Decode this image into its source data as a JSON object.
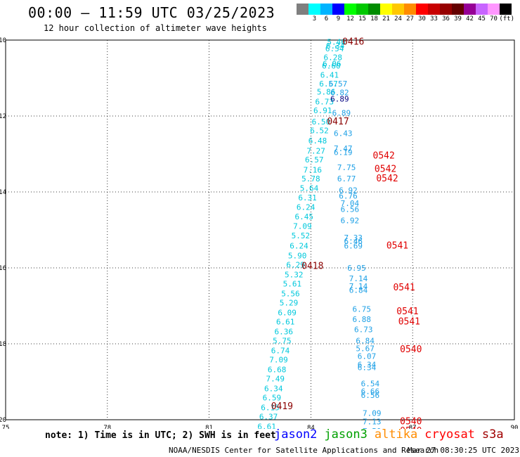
{
  "header": {
    "title": "00:00 — 11:59 UTC 03/25/2023",
    "subtitle": "12 hour collection of altimeter wave heights"
  },
  "colorbar": {
    "unit": "(ft)",
    "colors": [
      "#7f7f7f",
      "#00ffff",
      "#00b4ff",
      "#0000ff",
      "#00ff00",
      "#00c800",
      "#008c00",
      "#ffff00",
      "#ffc800",
      "#ff8c00",
      "#ff0000",
      "#c80000",
      "#960000",
      "#640000",
      "#960096",
      "#c864ff",
      "#ff96ff",
      "#000000"
    ],
    "labels": [
      "3",
      "6",
      "9",
      "12",
      "15",
      "18",
      "21",
      "24",
      "27",
      "30",
      "33",
      "36",
      "39",
      "42",
      "45",
      "70"
    ]
  },
  "footer": {
    "note": "note: 1) Time is in UTC; 2) SWH is in feet",
    "credit": "NOAA/NESDIS Center for Satellite Applications and Research",
    "timestamp": "Mar 27 08:30:25 UTC 2023"
  },
  "satellites": [
    {
      "name": "jason2",
      "color": "#0000ff"
    },
    {
      "name": "jason3",
      "color": "#00a000"
    },
    {
      "name": "altika",
      "color": "#ff8c00"
    },
    {
      "name": "cryosat",
      "color": "#ff0000"
    },
    {
      "name": "s3a",
      "color": "#a00000"
    }
  ],
  "chart_data": {
    "type": "scatter",
    "title": "00:00 — 11:59 UTC 03/25/2023",
    "subtitle": "12 hour collection of altimeter wave heights",
    "xlim": [
      75,
      90
    ],
    "ylim": [
      -20,
      -10
    ],
    "x_ticks": [
      "75",
      "78",
      "81",
      "84",
      "87",
      "90"
    ],
    "y_ticks": [
      "-10",
      "-12",
      "-14",
      "-16",
      "-18",
      "-20"
    ],
    "grid": true,
    "track1": {
      "color": "#00c8dc",
      "points": [
        {
          "lon": 84.75,
          "lat": -10.05,
          "v": "5.46"
        },
        {
          "lon": 84.72,
          "lat": -10.15,
          "v": "6.34"
        },
        {
          "lon": 84.7,
          "lat": -10.22,
          "v": "6.54"
        },
        {
          "lon": 84.65,
          "lat": -10.45,
          "v": "6.28"
        },
        {
          "lon": 84.62,
          "lat": -10.62,
          "v": "6.06"
        },
        {
          "lon": 84.6,
          "lat": -10.68,
          "v": "6.60"
        },
        {
          "lon": 84.55,
          "lat": -10.92,
          "v": "6.41"
        },
        {
          "lon": 84.52,
          "lat": -11.15,
          "v": "6.57"
        },
        {
          "lon": 84.45,
          "lat": -11.36,
          "v": "5.86"
        },
        {
          "lon": 84.4,
          "lat": -11.62,
          "v": "6.73"
        },
        {
          "lon": 84.35,
          "lat": -11.85,
          "v": "6.91"
        },
        {
          "lon": 84.3,
          "lat": -12.15,
          "v": "6.50"
        },
        {
          "lon": 84.25,
          "lat": -12.38,
          "v": "6.52"
        },
        {
          "lon": 84.2,
          "lat": -12.65,
          "v": "6.48"
        },
        {
          "lon": 84.15,
          "lat": -12.92,
          "v": "7.27"
        },
        {
          "lon": 84.1,
          "lat": -13.15,
          "v": "6.57"
        },
        {
          "lon": 84.05,
          "lat": -13.42,
          "v": "7.16"
        },
        {
          "lon": 84.0,
          "lat": -13.65,
          "v": "5.78"
        },
        {
          "lon": 83.95,
          "lat": -13.9,
          "v": "5.64"
        },
        {
          "lon": 83.9,
          "lat": -14.15,
          "v": "6.31"
        },
        {
          "lon": 83.85,
          "lat": -14.4,
          "v": "6.24"
        },
        {
          "lon": 83.8,
          "lat": -14.65,
          "v": "6.45"
        },
        {
          "lon": 83.75,
          "lat": -14.9,
          "v": "7.09"
        },
        {
          "lon": 83.7,
          "lat": -15.15,
          "v": "5.52"
        },
        {
          "lon": 83.65,
          "lat": -15.42,
          "v": "6.24"
        },
        {
          "lon": 83.6,
          "lat": -15.68,
          "v": "5.90"
        },
        {
          "lon": 83.55,
          "lat": -15.92,
          "v": "6.29"
        },
        {
          "lon": 83.5,
          "lat": -16.18,
          "v": "5.32"
        },
        {
          "lon": 83.45,
          "lat": -16.42,
          "v": "5.61"
        },
        {
          "lon": 83.4,
          "lat": -16.68,
          "v": "5.56"
        },
        {
          "lon": 83.35,
          "lat": -16.92,
          "v": "5.29"
        },
        {
          "lon": 83.3,
          "lat": -17.18,
          "v": "6.09"
        },
        {
          "lon": 83.25,
          "lat": -17.42,
          "v": "6.61"
        },
        {
          "lon": 83.2,
          "lat": -17.68,
          "v": "6.36"
        },
        {
          "lon": 83.15,
          "lat": -17.92,
          "v": "5.75"
        },
        {
          "lon": 83.1,
          "lat": -18.18,
          "v": "6.74"
        },
        {
          "lon": 83.05,
          "lat": -18.42,
          "v": "7.09"
        },
        {
          "lon": 83.0,
          "lat": -18.68,
          "v": "6.68"
        },
        {
          "lon": 82.95,
          "lat": -18.92,
          "v": "7.49"
        },
        {
          "lon": 82.9,
          "lat": -19.18,
          "v": "6.34"
        },
        {
          "lon": 82.85,
          "lat": -19.42,
          "v": "6.59"
        },
        {
          "lon": 82.8,
          "lat": -19.68,
          "v": "6.15"
        },
        {
          "lon": 82.75,
          "lat": -19.92,
          "v": "6.37"
        },
        {
          "lon": 82.7,
          "lat": -20.18,
          "v": "6.61"
        },
        {
          "lon": 82.65,
          "lat": -20.42,
          "v": "7.28"
        }
      ]
    },
    "track2": {
      "color": "#1ea0e6",
      "points": [
        {
          "lon": 84.8,
          "lat": -11.15,
          "v": "6.57"
        },
        {
          "lon": 84.85,
          "lat": -11.38,
          "v": "6.82"
        },
        {
          "lon": 84.9,
          "lat": -11.92,
          "v": "6.89"
        },
        {
          "lon": 84.95,
          "lat": -12.45,
          "v": "6.43"
        },
        {
          "lon": 84.95,
          "lat": -12.85,
          "v": "7.47"
        },
        {
          "lon": 84.95,
          "lat": -12.95,
          "v": "6.19"
        },
        {
          "lon": 85.05,
          "lat": -13.35,
          "v": "7.75"
        },
        {
          "lon": 85.05,
          "lat": -13.65,
          "v": "6.77"
        },
        {
          "lon": 85.1,
          "lat": -13.95,
          "v": "6.92"
        },
        {
          "lon": 85.1,
          "lat": -14.1,
          "v": "6.76"
        },
        {
          "lon": 85.15,
          "lat": -14.3,
          "v": "7.04"
        },
        {
          "lon": 85.15,
          "lat": -14.45,
          "v": "6.56"
        },
        {
          "lon": 85.15,
          "lat": -14.75,
          "v": "6.92"
        },
        {
          "lon": 85.25,
          "lat": -15.2,
          "v": "7.33"
        },
        {
          "lon": 85.25,
          "lat": -15.3,
          "v": "6.46"
        },
        {
          "lon": 85.25,
          "lat": -15.42,
          "v": "6.69"
        },
        {
          "lon": 85.35,
          "lat": -16.0,
          "v": "6.95"
        },
        {
          "lon": 85.4,
          "lat": -16.28,
          "v": "7.14"
        },
        {
          "lon": 85.4,
          "lat": -16.48,
          "v": "7.14"
        },
        {
          "lon": 85.4,
          "lat": -16.58,
          "v": "6.84"
        },
        {
          "lon": 85.5,
          "lat": -17.08,
          "v": "6.75"
        },
        {
          "lon": 85.5,
          "lat": -17.35,
          "v": "6.88"
        },
        {
          "lon": 85.55,
          "lat": -17.62,
          "v": "6.73"
        },
        {
          "lon": 85.6,
          "lat": -17.92,
          "v": "6.84"
        },
        {
          "lon": 85.6,
          "lat": -18.12,
          "v": "5.67"
        },
        {
          "lon": 85.65,
          "lat": -18.32,
          "v": "6.07"
        },
        {
          "lon": 85.65,
          "lat": -18.55,
          "v": "6.34"
        },
        {
          "lon": 85.65,
          "lat": -18.62,
          "v": "6.34"
        },
        {
          "lon": 85.75,
          "lat": -19.05,
          "v": "6.54"
        },
        {
          "lon": 85.75,
          "lat": -19.25,
          "v": "6.66"
        },
        {
          "lon": 85.75,
          "lat": -19.35,
          "v": "6.56"
        },
        {
          "lon": 85.8,
          "lat": -19.82,
          "v": "7.09"
        },
        {
          "lon": 85.8,
          "lat": -20.05,
          "v": "7.13"
        },
        {
          "lon": 85.8,
          "lat": -20.3,
          "v": "7.50"
        }
      ]
    },
    "darkValue": {
      "lon": 84.85,
      "lat": -11.55,
      "v": "6.89",
      "color": "#000080"
    },
    "passes": [
      {
        "lon": 85.25,
        "lat": -10.05,
        "v": "0416",
        "color": "#8b0000"
      },
      {
        "lon": 84.8,
        "lat": -12.15,
        "v": "0417",
        "color": "#8b0000"
      },
      {
        "lon": 84.05,
        "lat": -15.95,
        "v": "0418",
        "color": "#8b0000"
      },
      {
        "lon": 83.15,
        "lat": -19.65,
        "v": "0419",
        "color": "#8b0000"
      },
      {
        "lon": 86.15,
        "lat": -13.05,
        "v": "0542",
        "color": "#e00000"
      },
      {
        "lon": 86.2,
        "lat": -13.4,
        "v": "0542",
        "color": "#e00000"
      },
      {
        "lon": 86.25,
        "lat": -13.65,
        "v": "0542",
        "color": "#e00000"
      },
      {
        "lon": 86.55,
        "lat": -15.42,
        "v": "0541",
        "color": "#e00000"
      },
      {
        "lon": 86.75,
        "lat": -16.52,
        "v": "0541",
        "color": "#e00000"
      },
      {
        "lon": 86.85,
        "lat": -17.15,
        "v": "0541",
        "color": "#e00000"
      },
      {
        "lon": 86.9,
        "lat": -17.42,
        "v": "0541",
        "color": "#e00000"
      },
      {
        "lon": 86.95,
        "lat": -18.15,
        "v": "0540",
        "color": "#e00000"
      },
      {
        "lon": 86.95,
        "lat": -20.05,
        "v": "0540",
        "color": "#e00000"
      },
      {
        "lon": 86.95,
        "lat": -20.3,
        "v": "0540",
        "color": "#e00000"
      }
    ]
  }
}
